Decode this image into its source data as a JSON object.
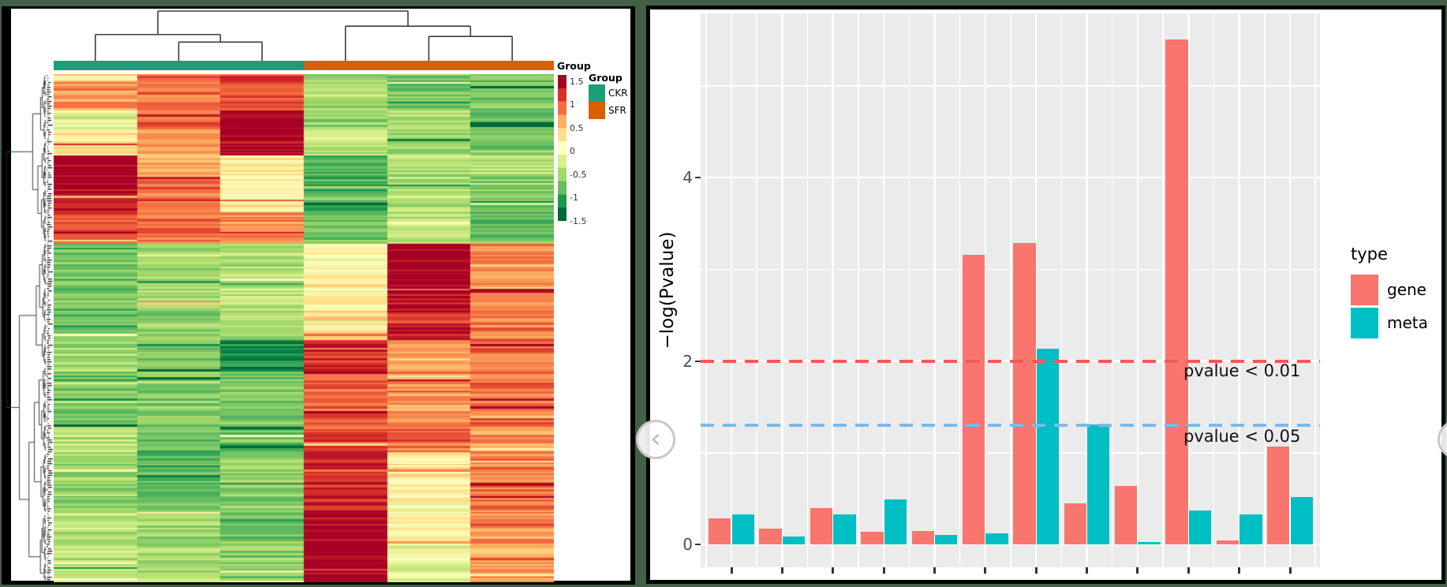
{
  "background_color": "#436047",
  "left_panel": {
    "annotation_row_title": "Group",
    "colorbar_legend": {
      "tick_labels": [
        "1.5",
        "1",
        "0.5",
        "0",
        "-0.5",
        "-1",
        "-1.5"
      ]
    },
    "group_legend": {
      "title": "Group",
      "items": [
        {
          "label": "CKR",
          "color": "#1B9E77"
        },
        {
          "label": "SFR",
          "color": "#D95F02"
        }
      ]
    }
  },
  "right_panel": {
    "y_axis_label": "−log(Pvalue)",
    "y_tick_labels": [
      "0",
      "2",
      "4"
    ],
    "legend": {
      "title": "type"
    },
    "annotations": [
      {
        "text": "pvalue < 0.01"
      },
      {
        "text": "pvalue < 0.05"
      }
    ],
    "nav": {
      "prev": "‹",
      "next": "›"
    }
  },
  "chart_data": [
    {
      "type": "heatmap",
      "n_columns": 6,
      "column_groups": [
        "CKR",
        "CKR",
        "CKR",
        "SFR",
        "SFR",
        "SFR"
      ],
      "group_colors": {
        "CKR": "#1B9E77",
        "SFR": "#D95F02"
      },
      "annotation_title": "Group",
      "value_scale": {
        "min": -1.5,
        "max": 1.5,
        "ticks": [
          1.5,
          1,
          0.5,
          0,
          -0.5,
          -1,
          -1.5
        ],
        "palette_high_to_low": [
          "#A50026",
          "#D73027",
          "#F46D43",
          "#FDAE61",
          "#FEE08B",
          "#FFFFBF",
          "#D9EF8B",
          "#A6D96A",
          "#66BD63",
          "#1A9850",
          "#006837"
        ]
      },
      "col_dendrogram": {
        "left_cluster": {
          "pair": [
            2,
            3
          ],
          "pair_height": 0.18,
          "join_height": 0.38
        },
        "right_cluster": {
          "pair": [
            5,
            6
          ],
          "pair_height": 0.33,
          "join_height": 0.6
        },
        "root_height": 1.0
      },
      "row_bands": [
        {
          "rows": [
            0.0,
            0.067
          ],
          "values": [
            0.7,
            0.9,
            1.1,
            -0.6,
            -0.85,
            -0.8
          ]
        },
        {
          "rows": [
            0.067,
            0.106
          ],
          "values": [
            -0.3,
            0.95,
            1.5,
            -0.7,
            -0.5,
            -0.85
          ]
        },
        {
          "rows": [
            0.106,
            0.158
          ],
          "values": [
            0.25,
            0.65,
            1.45,
            -0.55,
            -0.65,
            -0.9
          ]
        },
        {
          "rows": [
            0.158,
            0.199
          ],
          "values": [
            1.5,
            0.6,
            0.15,
            -0.9,
            -0.6,
            -0.5
          ]
        },
        {
          "rows": [
            0.199,
            0.27
          ],
          "values": [
            1.35,
            0.85,
            0.1,
            -1.05,
            -0.55,
            -0.8
          ]
        },
        {
          "rows": [
            0.27,
            0.332
          ],
          "values": [
            1.0,
            0.9,
            0.75,
            -0.8,
            -0.5,
            -0.9
          ]
        },
        {
          "rows": [
            0.332,
            0.46
          ],
          "values": [
            -0.8,
            -0.6,
            -0.5,
            0.05,
            1.5,
            0.75
          ]
        },
        {
          "rows": [
            0.46,
            0.522
          ],
          "values": [
            -0.9,
            -0.7,
            -0.55,
            0.3,
            1.2,
            0.85
          ]
        },
        {
          "rows": [
            0.522,
            0.581
          ],
          "values": [
            -0.6,
            -0.8,
            -1.3,
            1.2,
            0.55,
            0.9
          ]
        },
        {
          "rows": [
            0.581,
            0.693
          ],
          "values": [
            -0.85,
            -0.75,
            -0.75,
            0.95,
            0.7,
            0.9
          ]
        },
        {
          "rows": [
            0.693,
            0.742
          ],
          "values": [
            -0.5,
            -0.8,
            -0.9,
            1.1,
            0.9,
            0.7
          ]
        },
        {
          "rows": [
            0.742,
            0.856
          ],
          "values": [
            -0.65,
            -0.85,
            -0.7,
            1.25,
            0.2,
            0.85
          ]
        },
        {
          "rows": [
            0.856,
            0.922
          ],
          "values": [
            -0.55,
            -0.6,
            -0.8,
            1.45,
            0.1,
            0.7
          ]
        },
        {
          "rows": [
            0.922,
            1.0
          ],
          "values": [
            -0.5,
            -0.55,
            -0.75,
            1.5,
            -0.2,
            0.6
          ]
        }
      ]
    },
    {
      "type": "bar",
      "orientation": "vertical",
      "categories": [
        "",
        "",
        "",
        "",
        "",
        "",
        "",
        "",
        "",
        "",
        "",
        ""
      ],
      "series": [
        {
          "name": "gene",
          "color": "#F8766D",
          "values": [
            0.28,
            0.17,
            0.4,
            0.14,
            0.15,
            3.16,
            3.29,
            0.45,
            0.64,
            5.51,
            0.04,
            1.07
          ]
        },
        {
          "name": "meta",
          "color": "#00BFC4",
          "values": [
            0.33,
            0.09,
            0.33,
            0.49,
            0.1,
            0.12,
            2.13,
            1.31,
            0.03,
            0.37,
            0.33,
            0.52
          ]
        }
      ],
      "ylabel": "−log(Pvalue)",
      "yticks": [
        0,
        2,
        4
      ],
      "yminor": [
        1,
        3,
        5
      ],
      "ylim": [
        -0.25,
        5.79
      ],
      "grid": true,
      "legend_title": "type",
      "legend_position": "right",
      "reference_lines": [
        {
          "y": 2.0,
          "label": "pvalue < 0.01",
          "color": "#F05A55",
          "style": "dashed"
        },
        {
          "y": 1.3,
          "label": "pvalue < 0.05",
          "color": "#7DB9E8",
          "style": "dashed"
        }
      ]
    }
  ]
}
